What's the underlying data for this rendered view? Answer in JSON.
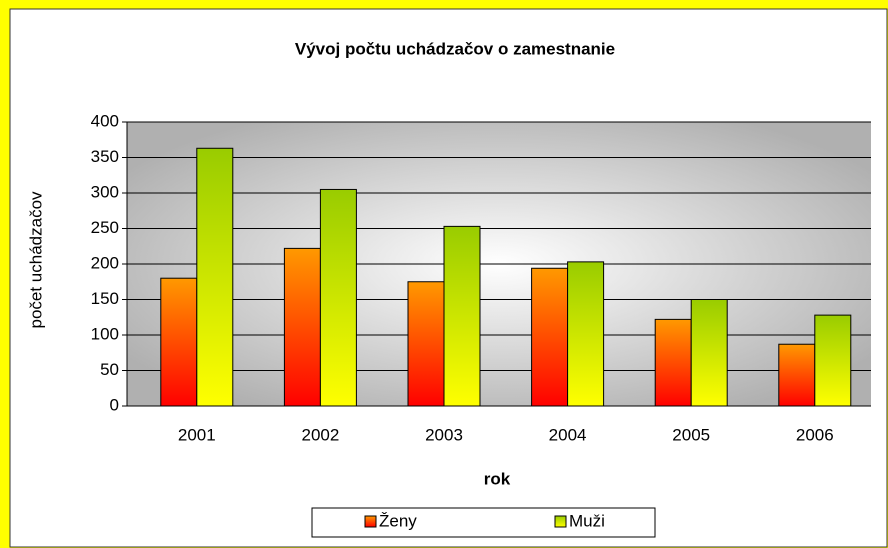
{
  "chart_data": {
    "type": "bar",
    "title": "Vývoj počtu uchádzačov o zamestnanie",
    "x_label": "rok",
    "y_label": "počet uchádzačov",
    "categories": [
      "2001",
      "2002",
      "2003",
      "2004",
      "2005",
      "2006"
    ],
    "series": [
      {
        "name": "Ženy",
        "color": "#ff9900",
        "color_end": "#ff0000",
        "values": [
          180,
          222,
          175,
          194,
          122,
          87
        ]
      },
      {
        "name": "Muži",
        "color": "#99cc00",
        "color_end": "#ffff00",
        "values": [
          363,
          305,
          253,
          203,
          150,
          128
        ]
      }
    ],
    "ylim": [
      0,
      400
    ],
    "yticks": [
      0,
      50,
      100,
      150,
      200,
      250,
      300,
      350,
      400
    ],
    "grid": true,
    "legend": "bottom"
  }
}
